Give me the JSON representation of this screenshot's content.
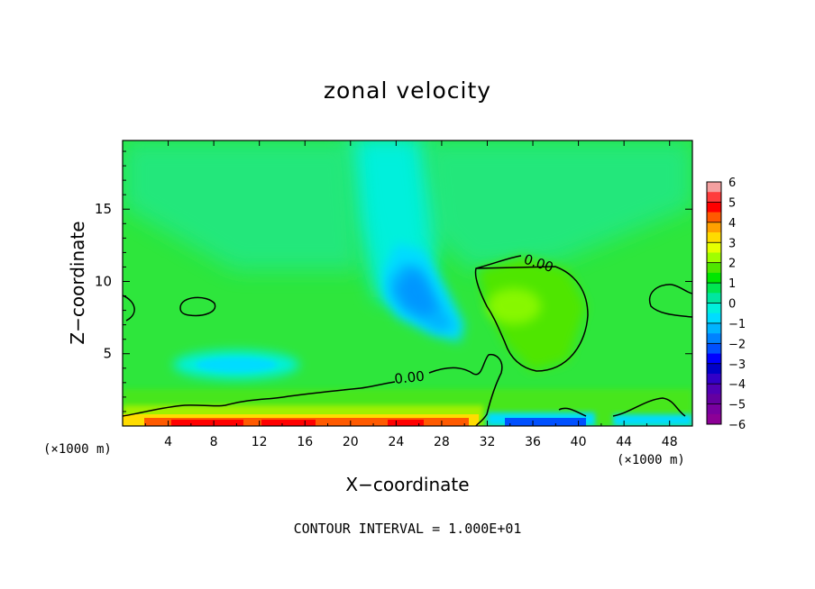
{
  "chart_data": {
    "type": "heatmap",
    "title": "zonal velocity",
    "xlabel": "X−coordinate",
    "ylabel": "Z−coordinate",
    "x_unit": "(×1000 m)",
    "y_unit": "(×1000 m)",
    "xlim": [
      0,
      50
    ],
    "ylim": [
      0,
      19.75
    ],
    "x_ticks": [
      4,
      8,
      12,
      16,
      20,
      24,
      28,
      32,
      36,
      40,
      44,
      48
    ],
    "y_ticks": [
      5,
      10,
      15
    ],
    "contour_interval_text": "CONTOUR INTERVAL = 1.000E+01",
    "contour_labels": [
      {
        "text": "0.00",
        "x": 35.5,
        "z": 11.0
      },
      {
        "text": "0.00",
        "x": 25.7,
        "z": 3.4
      }
    ],
    "colorbar": {
      "ticks": [
        "6",
        "5",
        "4",
        "3",
        "2",
        "1",
        "0",
        "−1",
        "−2",
        "−3",
        "−4",
        "−5",
        "−6"
      ],
      "colors": [
        "#f4a0a0",
        "#ff3c3c",
        "#ff0000",
        "#ff5a00",
        "#ffa000",
        "#ffdc00",
        "#e6ff00",
        "#a0ff00",
        "#50e600",
        "#00e600",
        "#00e650",
        "#00e6a0",
        "#00f0dc",
        "#00dcff",
        "#00b4ff",
        "#0082ff",
        "#0050ff",
        "#0000ff",
        "#0000c8",
        "#3200c8",
        "#5000b4",
        "#6400a0",
        "#7800a0",
        "#8c0096"
      ]
    }
  }
}
